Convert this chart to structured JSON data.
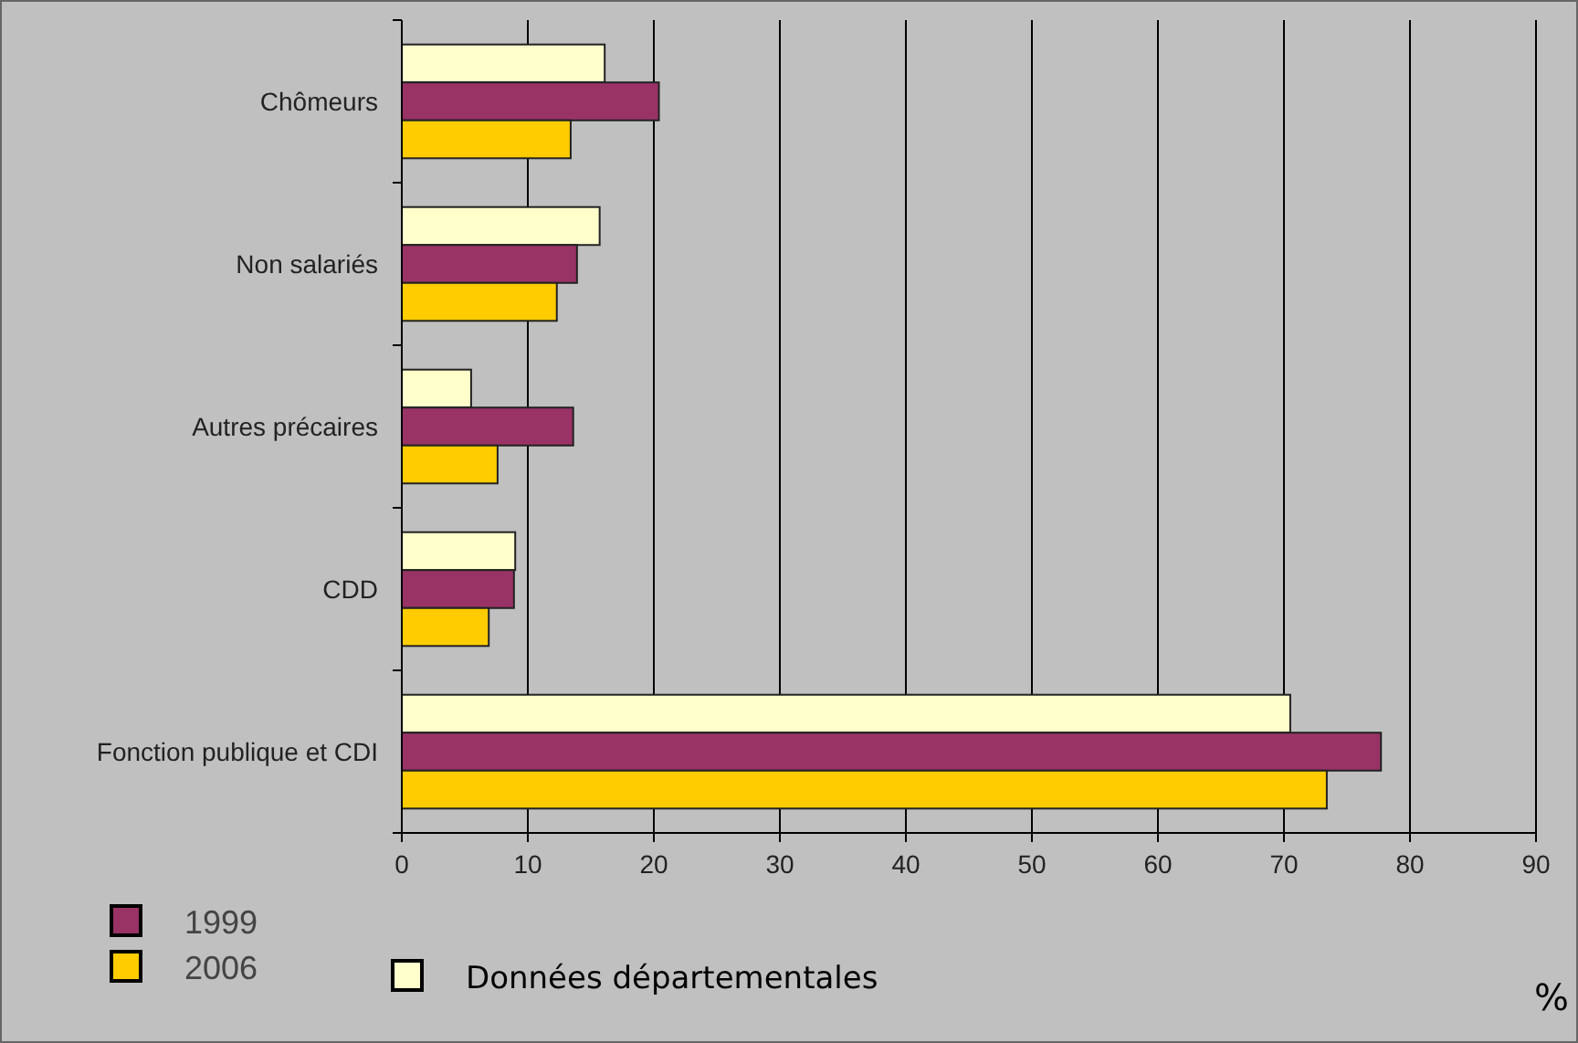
{
  "chart_data": {
    "type": "bar",
    "orientation": "horizontal",
    "xlabel": "%",
    "categories": [
      "Chômeurs",
      "Non salariés",
      "Autres précaires",
      "CDD",
      "Fonction publique et CDI"
    ],
    "series": [
      {
        "name": "Données départementales",
        "color": "#ffffcc",
        "values": [
          16.1,
          15.7,
          5.5,
          9.0,
          70.5
        ]
      },
      {
        "name": "1999",
        "color": "#993366",
        "values": [
          20.4,
          13.9,
          13.6,
          8.9,
          77.7
        ]
      },
      {
        "name": "2006",
        "color": "#ffcc00",
        "values": [
          13.4,
          12.3,
          7.6,
          6.9,
          73.4
        ]
      }
    ],
    "xlim": [
      0,
      90
    ],
    "xticks": [
      0,
      10,
      20,
      30,
      40,
      50,
      60,
      70,
      80,
      90
    ],
    "grid": "x",
    "legend": "bottom left"
  }
}
